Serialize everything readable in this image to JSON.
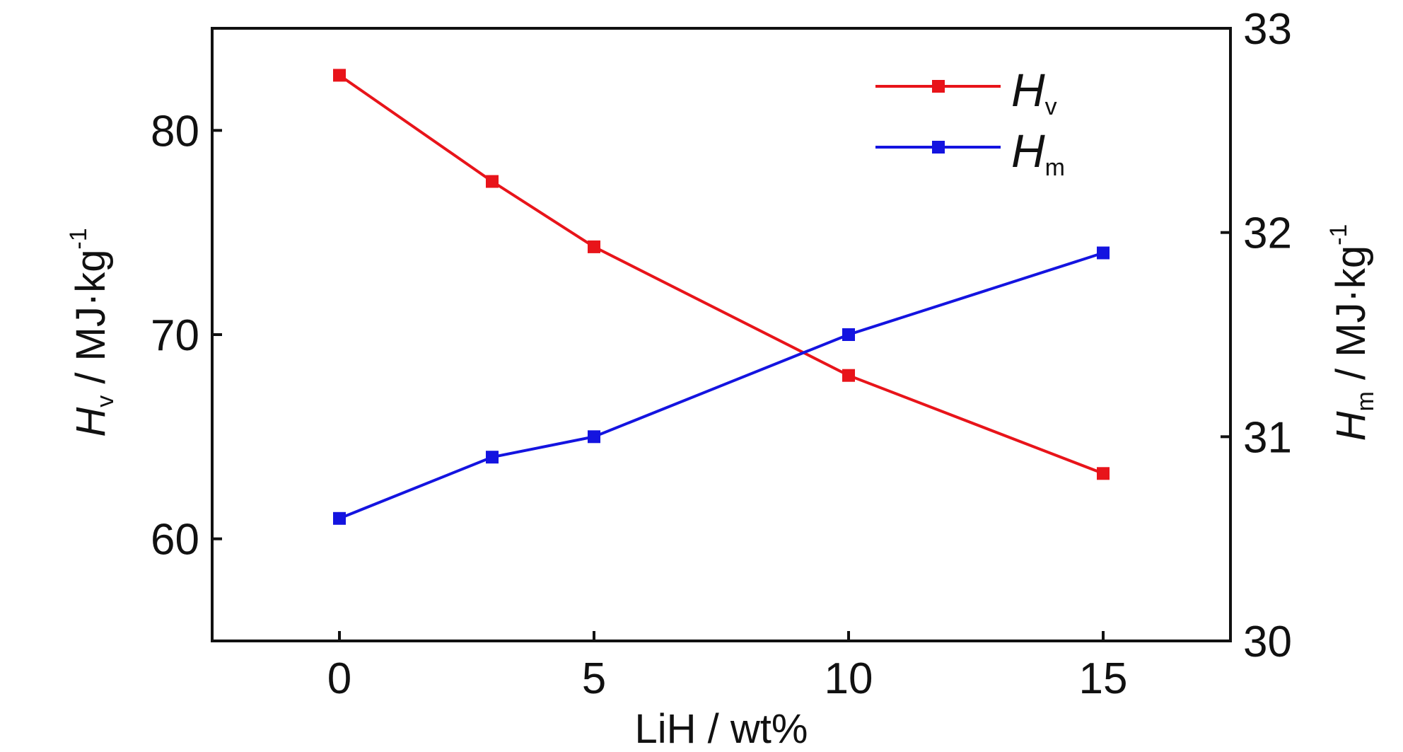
{
  "chart_data": {
    "type": "line",
    "x_axis": {
      "label": "LiH / wt%",
      "range": [
        -2.5,
        17.5
      ],
      "ticks": [
        0,
        5,
        10,
        15
      ],
      "tick_labels": [
        "0",
        "5",
        "10",
        "15"
      ]
    },
    "y_axis_left": {
      "label_var": "H",
      "label_sub": "v",
      "label_unit": " / MJ·kg",
      "label_sup": "-1",
      "range": [
        55,
        85
      ],
      "ticks": [
        60,
        70,
        80
      ],
      "tick_labels": [
        "60",
        "70",
        "80"
      ]
    },
    "y_axis_right": {
      "label_var": "H",
      "label_sub": "m",
      "label_unit": " / MJ·kg",
      "label_sup": "-1",
      "range": [
        30,
        33
      ],
      "ticks": [
        30,
        31,
        32,
        33
      ],
      "tick_labels": [
        "30",
        "31",
        "32",
        "33"
      ]
    },
    "x": [
      0,
      3,
      5,
      10,
      15
    ],
    "series": [
      {
        "name_var": "H",
        "name_sub": "v",
        "axis": "left",
        "color": "#e8141a",
        "values": [
          82.7,
          77.5,
          74.3,
          68.0,
          63.2
        ]
      },
      {
        "name_var": "H",
        "name_sub": "m",
        "axis": "right",
        "color": "#1414e0",
        "values": [
          30.6,
          30.9,
          31.0,
          31.5,
          31.9
        ]
      }
    ],
    "legend_position": "top-right",
    "grid": false
  }
}
